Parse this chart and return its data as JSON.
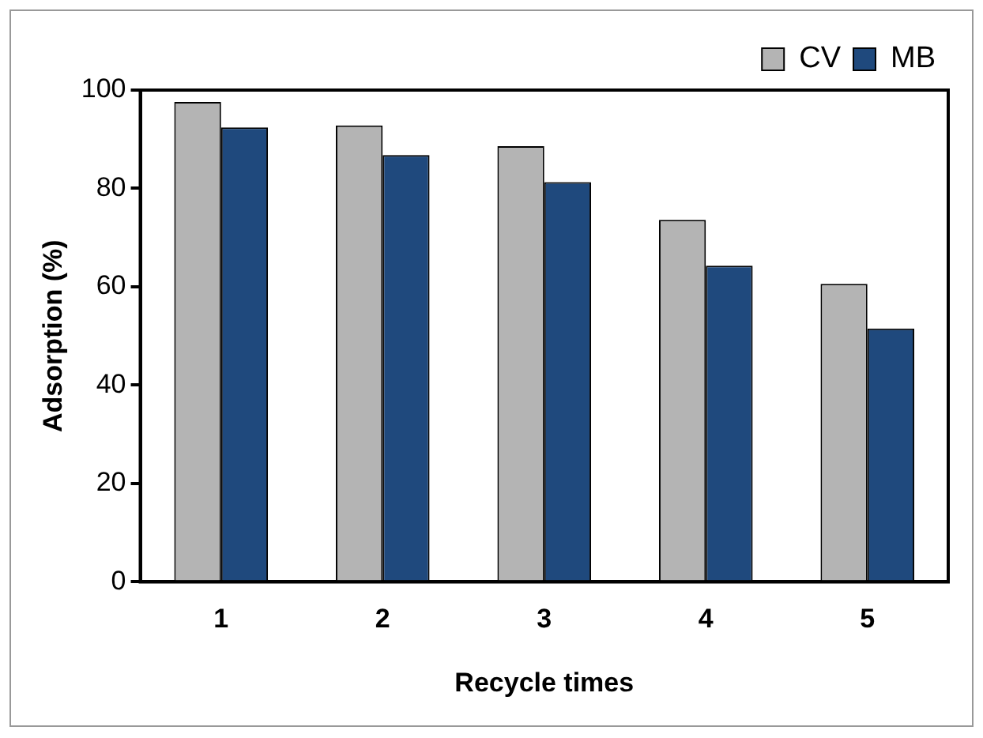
{
  "chart_data": {
    "type": "bar",
    "xlabel": "Recycle times",
    "ylabel": "Adsorption (%)",
    "categories": [
      "1",
      "2",
      "3",
      "4",
      "5"
    ],
    "series": [
      {
        "name": "CV",
        "color": "#b4b4b4",
        "values": [
          97.6,
          92.8,
          88.6,
          73.6,
          60.6
        ]
      },
      {
        "name": "MB",
        "color": "#1f497d",
        "values": [
          92.4,
          86.8,
          81.3,
          64.3,
          51.5
        ]
      }
    ],
    "ylim": [
      0,
      100
    ],
    "yticks": [
      0,
      20,
      40,
      60,
      80,
      100
    ],
    "grid": false,
    "legend": "top right"
  }
}
